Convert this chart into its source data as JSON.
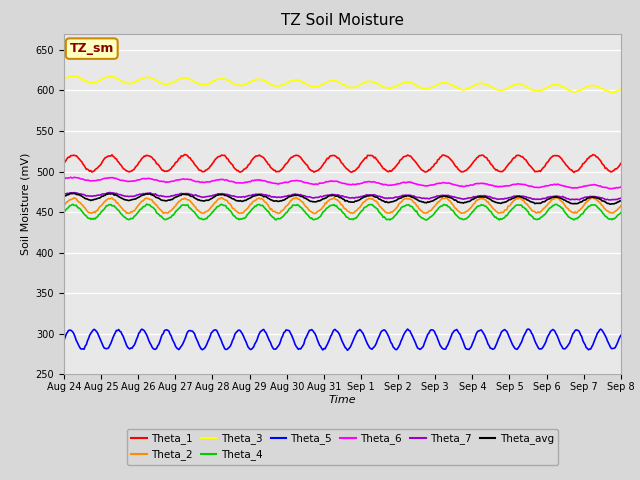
{
  "title": "TZ Soil Moisture",
  "xlabel": "Time",
  "ylabel": "Soil Moisture (mV)",
  "ylim": [
    250,
    670
  ],
  "yticks": [
    250,
    300,
    350,
    400,
    450,
    500,
    550,
    600,
    650
  ],
  "fig_facecolor": "#d8d8d8",
  "plot_facecolor": "#e8e8e8",
  "series": [
    {
      "name": "Theta_1",
      "color": "#ff0000",
      "base": 510,
      "amp": 10,
      "trend": 0.0,
      "period": 1.0,
      "noise": 0.5
    },
    {
      "name": "Theta_2",
      "color": "#ff8c00",
      "base": 458,
      "amp": 9,
      "trend": 0.0,
      "period": 1.0,
      "noise": 0.5
    },
    {
      "name": "Theta_3",
      "color": "#ffff00",
      "base": 614,
      "amp": 4,
      "trend": -2.5,
      "period": 1.0,
      "noise": 0.3
    },
    {
      "name": "Theta_4",
      "color": "#00cc00",
      "base": 450,
      "amp": 9,
      "trend": 0.0,
      "period": 1.0,
      "noise": 0.5
    },
    {
      "name": "Theta_5",
      "color": "#0000ff",
      "base": 293,
      "amp": 12,
      "trend": 0.0,
      "period": 0.65,
      "noise": 0.5
    },
    {
      "name": "Theta_6",
      "color": "#ff00ff",
      "base": 491,
      "amp": 2,
      "trend": -2.0,
      "period": 1.0,
      "noise": 0.3
    },
    {
      "name": "Theta_7",
      "color": "#9900cc",
      "base": 472,
      "amp": 2,
      "trend": -1.0,
      "period": 1.0,
      "noise": 0.3
    },
    {
      "name": "Theta_avg",
      "color": "#000000",
      "base": 469,
      "amp": 4,
      "trend": -1.0,
      "period": 1.0,
      "noise": 0.3
    }
  ],
  "n_points": 500,
  "x_start_day": 0,
  "x_end_day": 15,
  "xtick_labels": [
    "Aug 24",
    "Aug 25",
    "Aug 26",
    "Aug 27",
    "Aug 28",
    "Aug 29",
    "Aug 30",
    "Aug 31",
    "Sep 1",
    "Sep 2",
    "Sep 3",
    "Sep 4",
    "Sep 5",
    "Sep 6",
    "Sep 7",
    "Sep 8"
  ],
  "xtick_positions": [
    0,
    1,
    2,
    3,
    4,
    5,
    6,
    7,
    8,
    9,
    10,
    11,
    12,
    13,
    14,
    15
  ],
  "legend_label": "TZ_sm",
  "legend_label_color": "#8b0000",
  "legend_box_facecolor": "#ffffc0",
  "legend_box_edgecolor": "#cc8800",
  "title_fontsize": 11,
  "axis_label_fontsize": 8,
  "tick_fontsize": 7,
  "linewidth": 1.2
}
